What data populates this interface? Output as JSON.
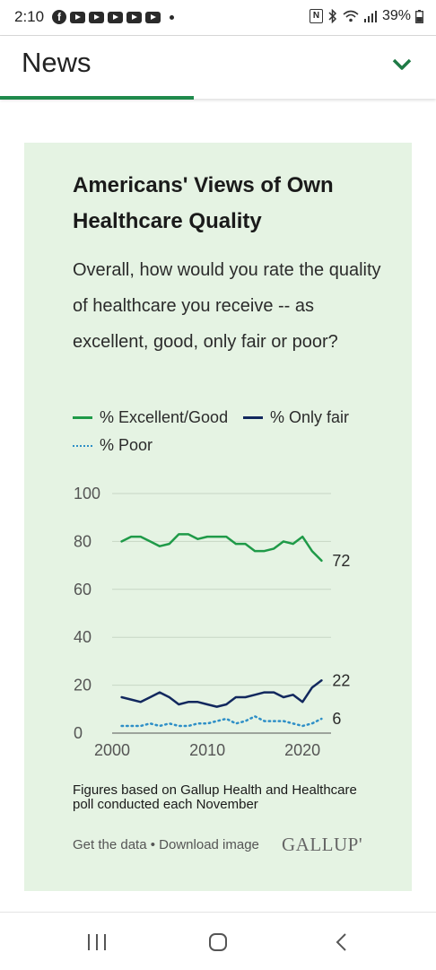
{
  "status_bar": {
    "time": "2:10",
    "battery": "39%",
    "icons": [
      "facebook-icon",
      "youtube-icon",
      "youtube-icon",
      "youtube-icon",
      "youtube-icon",
      "youtube-icon",
      "dot-icon",
      "nfc-icon",
      "bluetooth-icon",
      "wifi-icon",
      "signal-icon",
      "battery-icon"
    ]
  },
  "header": {
    "title": "News",
    "accent": "#1f8a4c"
  },
  "card": {
    "background": "#e5f3e3",
    "note": "Figures based on Gallup Health and Healthcare poll conducted each November",
    "get_data": "Get the data",
    "separator": "•",
    "download": "Download image",
    "logo": "GALLUP'"
  },
  "chart_data": {
    "type": "line",
    "title": "Americans' Views of Own Healthcare Quality",
    "subtitle": "Overall, how would you rate the quality of healthcare you receive -- as excellent, good, only fair or poor?",
    "x": [
      2001,
      2002,
      2003,
      2004,
      2005,
      2006,
      2007,
      2008,
      2009,
      2010,
      2011,
      2012,
      2013,
      2014,
      2015,
      2016,
      2017,
      2018,
      2019,
      2020,
      2021,
      2022
    ],
    "series": [
      {
        "name": "% Excellent/Good",
        "color": "#1f9a48",
        "style": "solid",
        "values": [
          80,
          82,
          82,
          80,
          78,
          79,
          83,
          83,
          81,
          82,
          82,
          82,
          79,
          79,
          76,
          76,
          77,
          80,
          79,
          82,
          76,
          72
        ],
        "end_label": "72"
      },
      {
        "name": "% Only fair",
        "color": "#12285e",
        "style": "solid",
        "values": [
          15,
          14,
          13,
          15,
          17,
          15,
          12,
          13,
          13,
          12,
          11,
          12,
          15,
          15,
          16,
          17,
          17,
          15,
          16,
          13,
          19,
          22
        ],
        "end_label": "22"
      },
      {
        "name": "% Poor",
        "color": "#2e8fc7",
        "style": "dotted",
        "values": [
          3,
          3,
          3,
          4,
          3,
          4,
          3,
          3,
          4,
          4,
          5,
          6,
          4,
          5,
          7,
          5,
          5,
          5,
          4,
          3,
          4,
          6
        ],
        "end_label": "6"
      }
    ],
    "x_ticks": [
      "2000",
      "2010",
      "2020"
    ],
    "x_tick_values": [
      2000,
      2010,
      2020
    ],
    "y_ticks": [
      "0",
      "20",
      "40",
      "60",
      "80",
      "100"
    ],
    "y_tick_values": [
      0,
      20,
      40,
      60,
      80,
      100
    ],
    "xlim": [
      2000,
      2023
    ],
    "ylim": [
      0,
      100
    ],
    "grid": true,
    "legend_position": "top-left"
  }
}
